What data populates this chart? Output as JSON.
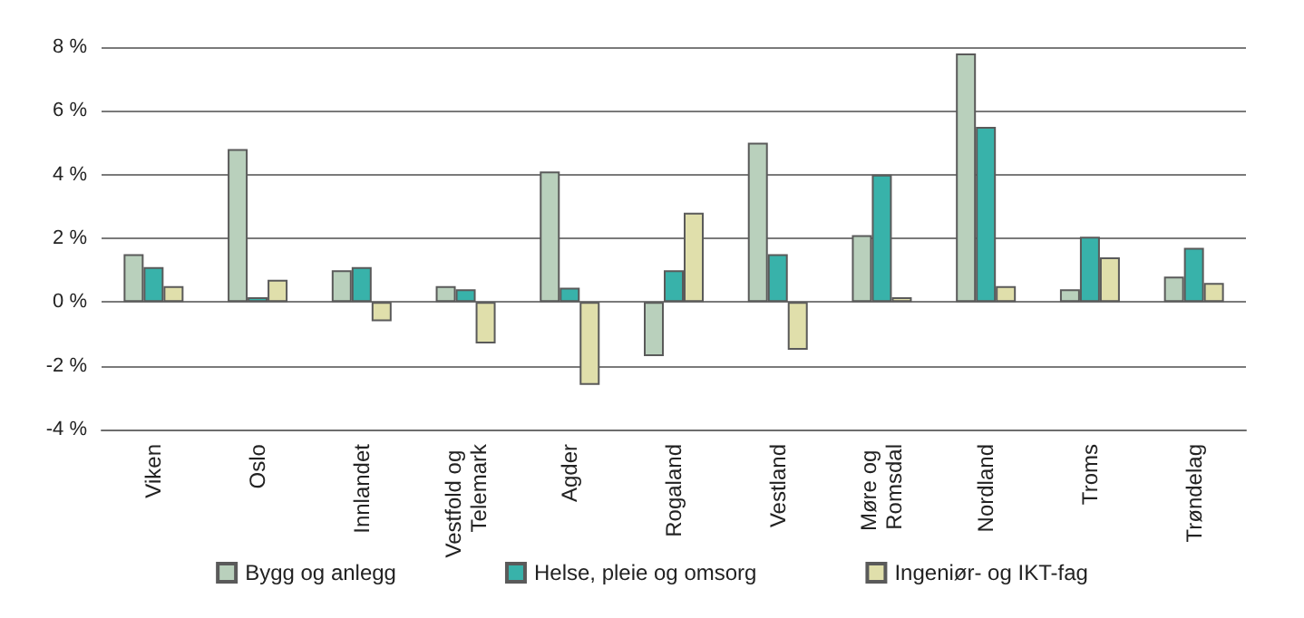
{
  "chart_data": {
    "type": "bar",
    "categories": [
      "Viken",
      "Oslo",
      "Innlandet",
      "Vestfold og Telemark",
      "Agder",
      "Rogaland",
      "Vestland",
      "Møre og Romsdal",
      "Nordland",
      "Troms",
      "Trøndelag"
    ],
    "series": [
      {
        "name": "Bygg og anlegg",
        "color": "#b9d0bc",
        "values": [
          1.5,
          4.8,
          1.0,
          0.5,
          4.1,
          -1.7,
          5.0,
          2.1,
          7.8,
          0.4,
          0.8
        ]
      },
      {
        "name": "Helse, pleie og omsorg",
        "color": "#38b2aa",
        "values": [
          1.1,
          0.15,
          1.1,
          0.4,
          0.45,
          1.0,
          1.5,
          4.0,
          5.5,
          2.05,
          1.7
        ]
      },
      {
        "name": "Ingeniør- og IKT-fag",
        "color": "#e0dfab",
        "values": [
          0.5,
          0.7,
          -0.6,
          -1.3,
          -2.6,
          2.8,
          -1.5,
          0.15,
          0.5,
          1.4,
          0.6
        ]
      }
    ],
    "ylim": [
      -4,
      8
    ],
    "yticks": [
      {
        "value": -4,
        "label": "-4 %"
      },
      {
        "value": -2,
        "label": "-2 %"
      },
      {
        "value": 0,
        "label": "0 %"
      },
      {
        "value": 2,
        "label": "2 %"
      },
      {
        "value": 4,
        "label": "4 %"
      },
      {
        "value": 6,
        "label": "6 %"
      },
      {
        "value": 8,
        "label": "8 %"
      }
    ],
    "grid": "y",
    "legend": "bottom"
  }
}
